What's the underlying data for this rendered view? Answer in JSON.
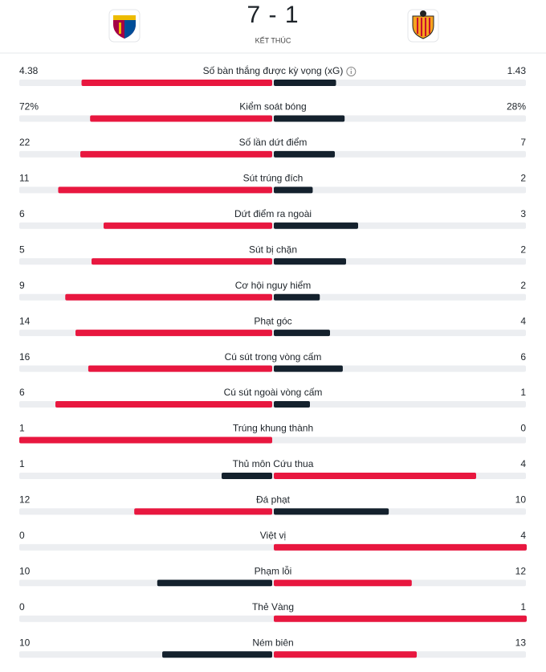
{
  "header": {
    "score": "7 - 1",
    "status": "KẾT THÚC"
  },
  "bar_colors": {
    "leading": "#e8173f",
    "trailing": "#14212d",
    "track": "#eceef1"
  },
  "stats": [
    {
      "name": "Số bàn thắng được kỳ vọng (xG)",
      "home": 4.38,
      "away": 1.43
    },
    {
      "name": "Kiểm soát bóng",
      "home": 72,
      "away": 28,
      "home_label": "72%",
      "away_label": "28%"
    },
    {
      "name": "Số lần dứt điểm",
      "home": 22,
      "away": 7
    },
    {
      "name": "Sút trúng đích",
      "home": 11,
      "away": 2
    },
    {
      "name": "Dứt điểm ra ngoài",
      "home": 6,
      "away": 3
    },
    {
      "name": "Sút bị chặn",
      "home": 5,
      "away": 2
    },
    {
      "name": "Cơ hội nguy hiểm",
      "home": 9,
      "away": 2
    },
    {
      "name": "Phạt góc",
      "home": 14,
      "away": 4
    },
    {
      "name": "Cú sút trong vòng cấm",
      "home": 16,
      "away": 6
    },
    {
      "name": "Cú sút ngoài vòng cấm",
      "home": 6,
      "away": 1
    },
    {
      "name": "Trúng khung thành",
      "home": 1,
      "away": 0
    },
    {
      "name": "Thủ môn Cứu thua",
      "home": 1,
      "away": 4
    },
    {
      "name": "Đá phạt",
      "home": 12,
      "away": 10
    },
    {
      "name": "Việt vị",
      "home": 0,
      "away": 4
    },
    {
      "name": "Phạm lỗi",
      "home": 10,
      "away": 12
    },
    {
      "name": "Thẻ Vàng",
      "home": 0,
      "away": 1
    },
    {
      "name": "Ném biên",
      "home": 10,
      "away": 13
    }
  ]
}
